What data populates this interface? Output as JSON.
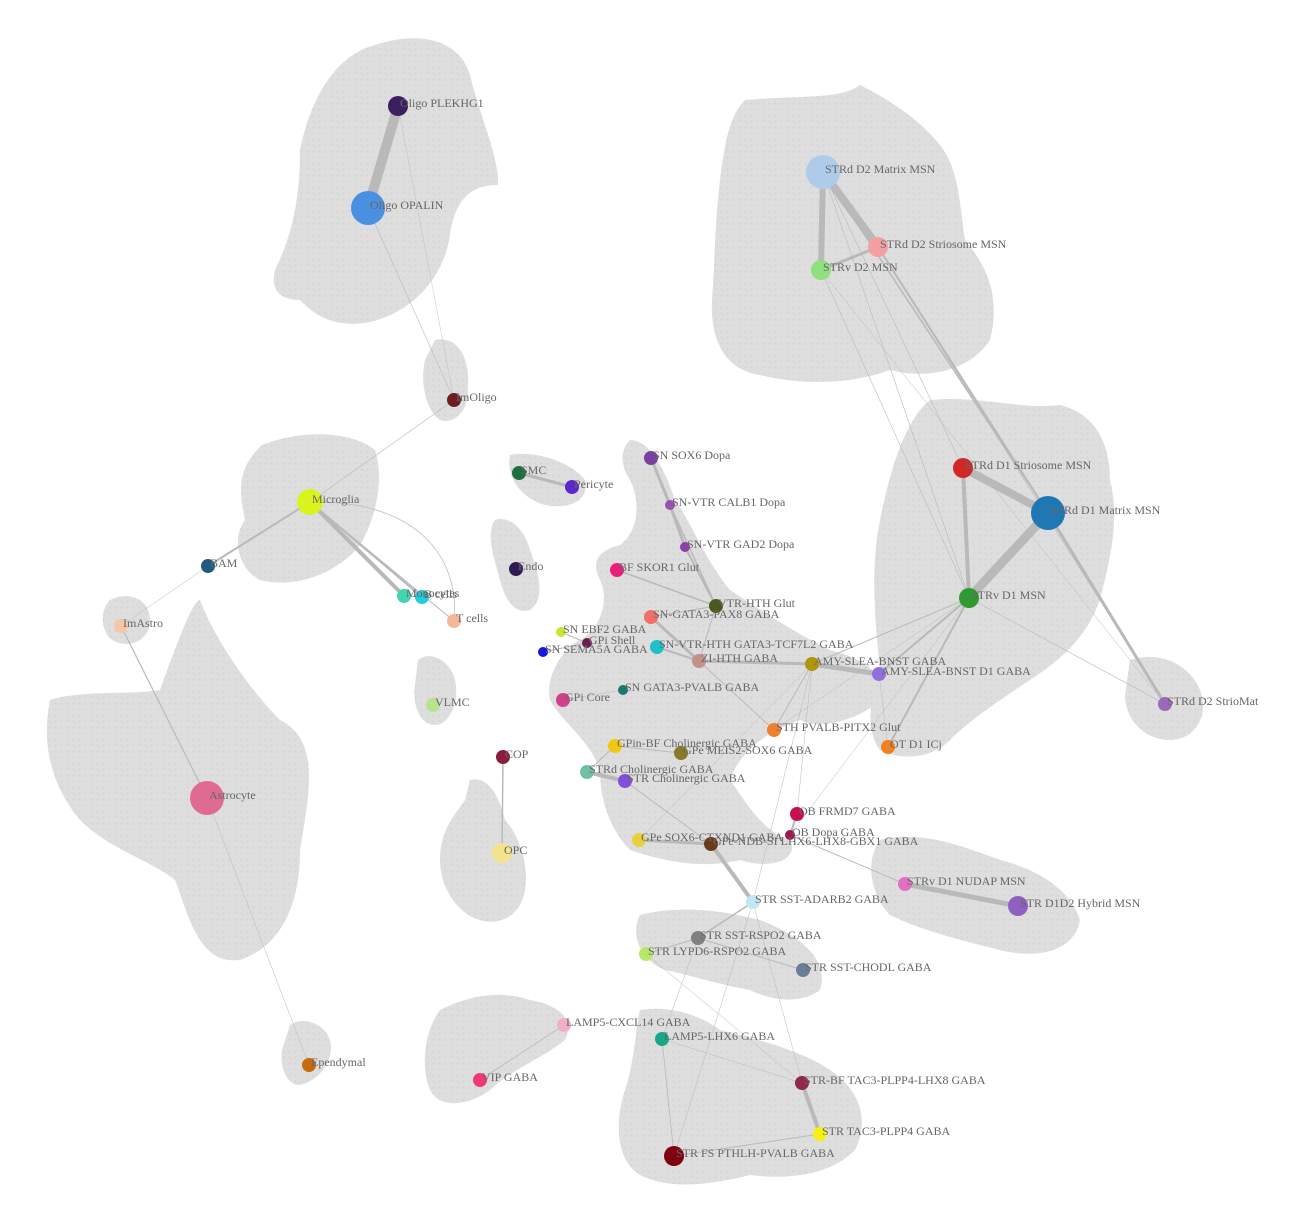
{
  "nodes": [
    {
      "id": "oligo_plekhg1",
      "label": "Oligo PLEKHG1",
      "color": "#3b1f5e",
      "size": "m"
    },
    {
      "id": "oligo_opalin",
      "label": "Oligo OPALIN",
      "color": "#4a90e2",
      "size": "xl"
    },
    {
      "id": "imoligo",
      "label": "ImOligo",
      "color": "#6b1f24",
      "size": "s"
    },
    {
      "id": "microglia",
      "label": "Microglia",
      "color": "#d9f31e",
      "size": "l"
    },
    {
      "id": "bam",
      "label": "BAM",
      "color": "#1f5c80",
      "size": "s"
    },
    {
      "id": "imastro",
      "label": "ImAstro",
      "color": "#f5c6a8",
      "size": "s"
    },
    {
      "id": "monocytes",
      "label": "Monocytes",
      "color": "#40d5b0",
      "size": "s"
    },
    {
      "id": "bcells",
      "label": "B cells",
      "color": "#22ccdd",
      "size": "s"
    },
    {
      "id": "tcells",
      "label": "T cells",
      "color": "#f4b79a",
      "size": "s"
    },
    {
      "id": "astrocyte",
      "label": "Astrocyte",
      "color": "#df6b93",
      "size": "xl"
    },
    {
      "id": "vlmc",
      "label": "VLMC",
      "color": "#b5e48c",
      "size": "s"
    },
    {
      "id": "cop",
      "label": "COP",
      "color": "#8b1c3c",
      "size": "s"
    },
    {
      "id": "opc",
      "label": "OPC",
      "color": "#f4e28c",
      "size": "m"
    },
    {
      "id": "ependymal",
      "label": "Ependymal",
      "color": "#c86a10",
      "size": "s"
    },
    {
      "id": "smc",
      "label": "SMC",
      "color": "#1f6e3e",
      "size": "s"
    },
    {
      "id": "pericyte",
      "label": "Pericyte",
      "color": "#5d28c8",
      "size": "s"
    },
    {
      "id": "endo",
      "label": "Endo",
      "color": "#2e1a55",
      "size": "s"
    },
    {
      "id": "sn_sox6",
      "label": "SN SOX6 Dopa",
      "color": "#7b3fa0",
      "size": "s"
    },
    {
      "id": "sn_vtr_calb1",
      "label": "SN-VTR CALB1 Dopa",
      "color": "#9b4fb0",
      "size": "xs"
    },
    {
      "id": "sn_vtr_gad2",
      "label": "SN-VTR GAD2 Dopa",
      "color": "#8c3fa8",
      "size": "xs"
    },
    {
      "id": "bf_skor1",
      "label": "BF SKOR1 Glut",
      "color": "#e8207a",
      "size": "s"
    },
    {
      "id": "vtr_hth",
      "label": "VTR-HTH Glut",
      "color": "#4a5a1e",
      "size": "s"
    },
    {
      "id": "sn_gata3_pax8",
      "label": "SN-GATA3-PAX8 GABA",
      "color": "#f07068",
      "size": "s"
    },
    {
      "id": "sn_ebf2",
      "label": "SN EBF2 GABA",
      "color": "#c4e83a",
      "size": "xs"
    },
    {
      "id": "gpi_shell",
      "label": "GPi Shell",
      "color": "#6a1f4e",
      "size": "xs"
    },
    {
      "id": "sn_sema5a",
      "label": "SN SEMA5A GABA",
      "color": "#1a14e0",
      "size": "xs"
    },
    {
      "id": "sn_vtr_hth_gata3",
      "label": "SN-VTR-HTH GATA3-TCF7L2 GABA",
      "color": "#1fc0c8",
      "size": "s"
    },
    {
      "id": "zi_hth",
      "label": "ZI-HTH GABA",
      "color": "#c4908a",
      "size": "s"
    },
    {
      "id": "amy_slea_bnst",
      "label": "AMY-SLEA-BNST GABA",
      "color": "#b0960e",
      "size": "s"
    },
    {
      "id": "amy_slea_bnst_d1",
      "label": "AMY-SLEA-BNST D1 GABA",
      "color": "#9070e0",
      "size": "s"
    },
    {
      "id": "gpi_core",
      "label": "GPi Core",
      "color": "#d0408c",
      "size": "s"
    },
    {
      "id": "sn_gata3_pvalb",
      "label": "SN GATA3-PVALB GABA",
      "color": "#187a70",
      "size": "xs"
    },
    {
      "id": "sth_pvalb",
      "label": "STH PVALB-PITX2 Glut",
      "color": "#f08030",
      "size": "s"
    },
    {
      "id": "ot_d1_icj",
      "label": "OT D1 ICj",
      "color": "#f08020",
      "size": "s"
    },
    {
      "id": "gpin_bf_chol",
      "label": "GPin-BF Cholinergic GABA",
      "color": "#f0c814",
      "size": "s"
    },
    {
      "id": "gpe_meis2",
      "label": "GPe MEIS2-SOX6 GABA",
      "color": "#8a7a28",
      "size": "s"
    },
    {
      "id": "strd_chol",
      "label": "STRd Cholinergic GABA",
      "color": "#70c0a8",
      "size": "s"
    },
    {
      "id": "str_chol",
      "label": "STR Cholinergic GABA",
      "color": "#8050d8",
      "size": "s"
    },
    {
      "id": "ob_frmd7",
      "label": "OB FRMD7 GABA",
      "color": "#c8104a",
      "size": "s"
    },
    {
      "id": "ob_dopa",
      "label": "OB Dopa GABA",
      "color": "#a01850",
      "size": "xs"
    },
    {
      "id": "gpe_sox6_cta",
      "label": "GPe SOX6-CTXND1 GABA",
      "color": "#e8d040",
      "size": "s"
    },
    {
      "id": "gpe_ndb",
      "label": "GPe-NDB-SI LHX6-LHX8-GBX1 GABA",
      "color": "#6b3a1a",
      "size": "s"
    },
    {
      "id": "strv_d1_nudap",
      "label": "STRv D1 NUDAP MSN",
      "color": "#e070c0",
      "size": "s"
    },
    {
      "id": "str_d1d2_hybrid",
      "label": "STR D1D2 Hybrid MSN",
      "color": "#9060c0",
      "size": "m"
    },
    {
      "id": "str_sst_adarb2",
      "label": "STR SST-ADARB2 GABA",
      "color": "#c0e8f0",
      "size": "s"
    },
    {
      "id": "str_sst_rspo2",
      "label": "STR SST-RSPO2 GABA",
      "color": "#808080",
      "size": "s"
    },
    {
      "id": "str_lypd6_rspo2",
      "label": "STR LYPD6-RSPO2 GABA",
      "color": "#b8e868",
      "size": "s"
    },
    {
      "id": "str_sst_chodl",
      "label": "STR SST-CHODL GABA",
      "color": "#6a7e98",
      "size": "s"
    },
    {
      "id": "lamp5_cxcl14",
      "label": "LAMP5-CXCL14 GABA",
      "color": "#f0b0c8",
      "size": "s"
    },
    {
      "id": "lamp5_lhx6",
      "label": "LAMP5-LHX6 GABA",
      "color": "#18a888",
      "size": "s"
    },
    {
      "id": "vip",
      "label": "VIP GABA",
      "color": "#f03878",
      "size": "s"
    },
    {
      "id": "str_bf_tac3",
      "label": "STR-BF TAC3-PLPP4-LHX8 GABA",
      "color": "#902848",
      "size": "s"
    },
    {
      "id": "str_tac3",
      "label": "STR TAC3-PLPP4 GABA",
      "color": "#f8f010",
      "size": "s"
    },
    {
      "id": "str_fs_pthlh",
      "label": "STR FS PTHLH-PVALB GABA",
      "color": "#800010",
      "size": "m"
    },
    {
      "id": "strd_d2_matrix",
      "label": "STRd D2 Matrix MSN",
      "color": "#aecbea",
      "size": "xl"
    },
    {
      "id": "strd_d2_striosome",
      "label": "STRd D2 Striosome MSN",
      "color": "#f4a0a0",
      "size": "m"
    },
    {
      "id": "strv_d2",
      "label": "STRv D2 MSN",
      "color": "#90e080",
      "size": "m"
    },
    {
      "id": "strd_d1_striosome",
      "label": "STRd D1 Striosome MSN",
      "color": "#d02828",
      "size": "m"
    },
    {
      "id": "strd_d1_matrix",
      "label": "STRd D1 Matrix MSN",
      "color": "#1f77b4",
      "size": "xl"
    },
    {
      "id": "strv_d1",
      "label": "STRv D1 MSN",
      "color": "#2e9a30",
      "size": "m"
    },
    {
      "id": "strd_d2_striomatrix",
      "label": "STRd D2 StrioMat",
      "color": "#9a6ab8",
      "size": "s"
    }
  ],
  "edges": [
    [
      "oligo_plekhg1",
      "oligo_opalin",
      10
    ],
    [
      "oligo_opalin",
      "imoligo",
      0.6
    ],
    [
      "oligo_plekhg1",
      "imoligo",
      0.4
    ],
    [
      "imoligo",
      "microglia",
      0.6
    ],
    [
      "microglia",
      "bam",
      2
    ],
    [
      "bam",
      "imastro",
      0.5
    ],
    [
      "microglia",
      "monocytes",
      4
    ],
    [
      "microglia",
      "bcells",
      2
    ],
    [
      "microglia",
      "tcells",
      1
    ],
    [
      "monocytes",
      "bcells",
      1
    ],
    [
      "imastro",
      "astrocyte",
      1.2
    ],
    [
      "astrocyte",
      "ependymal",
      0.5
    ],
    [
      "cop",
      "opc",
      1.5
    ],
    [
      "smc",
      "pericyte",
      3
    ],
    [
      "sn_sox6",
      "sn_vtr_calb1",
      3
    ],
    [
      "sn_vtr_calb1",
      "sn_vtr_gad2",
      3
    ],
    [
      "sn_vtr_gad2",
      "vtr_hth",
      2
    ],
    [
      "sn_vtr_calb1",
      "vtr_hth",
      1.5
    ],
    [
      "bf_skor1",
      "vtr_hth",
      1.5
    ],
    [
      "vtr_hth",
      "sn_gata3_pax8",
      1
    ],
    [
      "sn_gata3_pax8",
      "zi_hth",
      3
    ],
    [
      "sn_vtr_hth_gata3",
      "zi_hth",
      2
    ],
    [
      "zi_hth",
      "amy_slea_bnst",
      3
    ],
    [
      "vtr_hth",
      "zi_hth",
      1
    ],
    [
      "sn_ebf2",
      "gpi_shell",
      1
    ],
    [
      "sn_sema5a",
      "gpi_shell",
      1
    ],
    [
      "amy_slea_bnst",
      "amy_slea_bnst_d1",
      5
    ],
    [
      "amy_slea_bnst",
      "sth_pvalb",
      1
    ],
    [
      "zi_hth",
      "sth_pvalb",
      1
    ],
    [
      "amy_slea_bnst",
      "strv_d1",
      1
    ],
    [
      "amy_slea_bnst_d1",
      "strv_d1",
      2
    ],
    [
      "amy_slea_bnst",
      "gpe_sox6_cta",
      0.5
    ],
    [
      "amy_slea_bnst",
      "ob_frmd7",
      0.5
    ],
    [
      "amy_slea_bnst",
      "str_sst_adarb2",
      0.5
    ],
    [
      "gpi_core",
      "sn_gata3_pvalb",
      0.5
    ],
    [
      "strv_d1",
      "ot_d1_icj",
      2
    ],
    [
      "amy_slea_bnst_d1",
      "ot_d1_icj",
      0.5
    ],
    [
      "gpin_bf_chol",
      "gpe_meis2",
      1
    ],
    [
      "gpin_bf_chol",
      "strd_chol",
      1
    ],
    [
      "strd_chol",
      "str_chol",
      4
    ],
    [
      "str_chol",
      "gpe_ndb",
      1
    ],
    [
      "gpe_sox6_cta",
      "gpe_ndb",
      3
    ],
    [
      "gpe_ndb",
      "str_sst_adarb2",
      4
    ],
    [
      "ob_frmd7",
      "ob_dopa",
      2
    ],
    [
      "ob_dopa",
      "strv_d1_nudap",
      1
    ],
    [
      "strv_d1_nudap",
      "str_d1d2_hybrid",
      5
    ],
    [
      "ob_dopa",
      "strv_d1",
      0.5
    ],
    [
      "str_sst_adarb2",
      "str_sst_rspo2",
      1.5
    ],
    [
      "str_sst_rspo2",
      "str_lypd6_rspo2",
      1
    ],
    [
      "str_sst_rspo2",
      "str_sst_chodl",
      1
    ],
    [
      "str_sst_adarb2",
      "str_fs_pthlh",
      0.5
    ],
    [
      "str_sst_adarb2",
      "str_bf_tac3",
      0.5
    ],
    [
      "str_bf_tac3",
      "str_tac3",
      4
    ],
    [
      "str_fs_pthlh",
      "str_tac3",
      1
    ],
    [
      "lamp5_lhx6",
      "str_fs_pthlh",
      0.8
    ],
    [
      "lamp5_cxcl14",
      "vip",
      0.8
    ],
    [
      "lamp5_lhx6",
      "str_bf_tac3",
      0.5
    ],
    [
      "str_lypd6_rspo2",
      "str_bf_tac3",
      0.5
    ],
    [
      "lamp5_lhx6",
      "str_sst_rspo2",
      0.5
    ],
    [
      "strd_d2_matrix",
      "strd_d2_striosome",
      8
    ],
    [
      "strd_d2_matrix",
      "strv_d2",
      6
    ],
    [
      "strv_d2",
      "strd_d2_striosome",
      3
    ],
    [
      "strd_d2_matrix",
      "strd_d1_matrix",
      1.5
    ],
    [
      "strd_d2_striosome",
      "strd_d1_matrix",
      2
    ],
    [
      "strd_d2_matrix",
      "strv_d1",
      0.6
    ],
    [
      "strv_d2",
      "strv_d1",
      0.6
    ],
    [
      "strd_d2_matrix",
      "strd_d1_striosome",
      0.6
    ],
    [
      "strd_d2_striosome",
      "strd_d2_striomatrix",
      0.6
    ],
    [
      "strv_d2",
      "strd_d2_striomatrix",
      0.5
    ],
    [
      "strd_d1_striosome",
      "strd_d1_matrix",
      8
    ],
    [
      "strd_d1_matrix",
      "strv_d1",
      9
    ],
    [
      "strd_d1_striosome",
      "strv_d1",
      4
    ],
    [
      "strd_d1_matrix",
      "strd_d2_striomatrix",
      3
    ],
    [
      "strv_d1",
      "strd_d2_striomatrix",
      0.6
    ],
    [
      "strv_d1",
      "sth_pvalb",
      0.5
    ]
  ]
}
